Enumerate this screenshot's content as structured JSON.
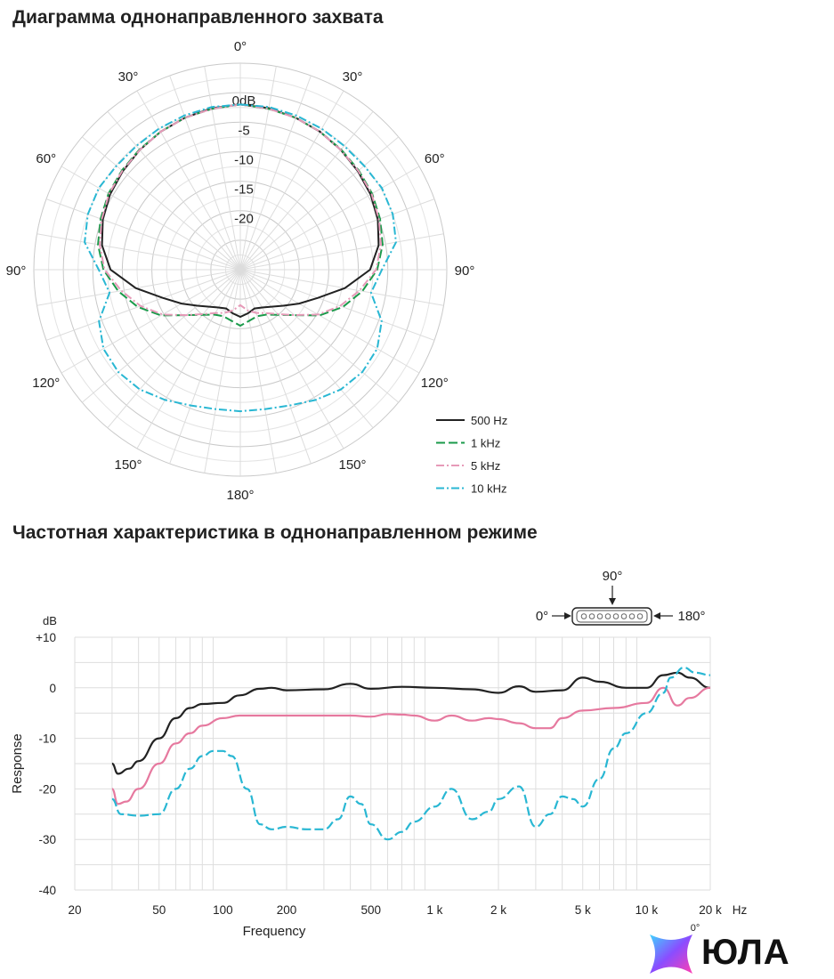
{
  "chart_data": [
    {
      "type": "polar",
      "title": "Диаграмма однонаправленного захвата",
      "angle_labels": [
        {
          "deg": 0,
          "text": "0°"
        },
        {
          "deg": 30,
          "text": "30°"
        },
        {
          "deg": -30,
          "text": "30°"
        },
        {
          "deg": 60,
          "text": "60°"
        },
        {
          "deg": -60,
          "text": "60°"
        },
        {
          "deg": 90,
          "text": "90°"
        },
        {
          "deg": -90,
          "text": "90°"
        },
        {
          "deg": 120,
          "text": "120°"
        },
        {
          "deg": -120,
          "text": "120°"
        },
        {
          "deg": 150,
          "text": "150°"
        },
        {
          "deg": -150,
          "text": "150°"
        },
        {
          "deg": 180,
          "text": "180°"
        }
      ],
      "rings": [
        {
          "db": 0,
          "label": "0dB"
        },
        {
          "db": -5,
          "label": "-5"
        },
        {
          "db": -10,
          "label": "-10"
        },
        {
          "db": -15,
          "label": "-15"
        },
        {
          "db": -20,
          "label": "-20"
        }
      ],
      "r_range_db": [
        -30,
        5
      ],
      "grid": true,
      "legend_position": "bottom-right",
      "series": [
        {
          "name": "500 Hz",
          "color": "#222222",
          "dash": "solid",
          "angles": [
            0,
            10,
            20,
            30,
            40,
            50,
            60,
            70,
            80,
            90,
            100,
            110,
            120,
            130,
            140,
            150,
            160,
            170,
            180
          ],
          "values_db": [
            -2,
            -2.2,
            -2.6,
            -3,
            -3.5,
            -4,
            -4.5,
            -5.2,
            -6.2,
            -8,
            -12,
            -16,
            -18.5,
            -20.5,
            -21.8,
            -22.6,
            -23,
            -22.5,
            -22
          ]
        },
        {
          "name": "1 kHz",
          "color": "#1a9a4a",
          "dash": "dash",
          "angles": [
            0,
            10,
            20,
            30,
            40,
            50,
            60,
            70,
            80,
            90,
            100,
            110,
            120,
            130,
            140,
            150,
            160,
            170,
            180
          ],
          "values_db": [
            -2,
            -2.3,
            -2.6,
            -3,
            -3.4,
            -3.8,
            -4.2,
            -4.8,
            -5.5,
            -6.8,
            -9,
            -11.5,
            -14.5,
            -18,
            -20,
            -21.2,
            -21.6,
            -21.2,
            -20.5
          ]
        },
        {
          "name": "5 kHz",
          "color": "#e69ab8",
          "dash": "dashdot",
          "angles": [
            0,
            10,
            20,
            30,
            40,
            50,
            60,
            70,
            80,
            90,
            100,
            110,
            120,
            130,
            140,
            150,
            160,
            170,
            180
          ],
          "values_db": [
            -2,
            -2.3,
            -2.6,
            -3,
            -3.5,
            -3.9,
            -4.3,
            -5,
            -5.8,
            -7,
            -9.5,
            -12,
            -14.8,
            -18,
            -20.2,
            -21.5,
            -22.2,
            -23,
            -24
          ]
        },
        {
          "name": "10 kHz",
          "color": "#29b7d3",
          "dash": "dashdot",
          "angles": [
            0,
            10,
            20,
            30,
            40,
            50,
            60,
            70,
            80,
            90,
            100,
            110,
            120,
            130,
            140,
            150,
            160,
            170,
            180
          ],
          "values_db": [
            -2,
            -2,
            -2.2,
            -2.4,
            -2.6,
            -2.6,
            -2.3,
            -2.5,
            -3.2,
            -6,
            -7.5,
            -4.5,
            -3.2,
            -3,
            -3.5,
            -4.5,
            -5.5,
            -6,
            -6
          ]
        }
      ]
    },
    {
      "type": "line",
      "title": "Частотная характеристика в однонаправленном режиме",
      "xlabel": "Frequency",
      "ylabel": "Response",
      "x_scale": "log",
      "xlim": [
        20,
        20000
      ],
      "ylim": [
        -40,
        10
      ],
      "x_ticks": [
        {
          "v": 20,
          "label": "20"
        },
        {
          "v": 50,
          "label": "50"
        },
        {
          "v": 100,
          "label": "100"
        },
        {
          "v": 200,
          "label": "200"
        },
        {
          "v": 500,
          "label": "500"
        },
        {
          "v": 1000,
          "label": "1 k"
        },
        {
          "v": 2000,
          "label": "2 k"
        },
        {
          "v": 5000,
          "label": "5 k"
        },
        {
          "v": 10000,
          "label": "10 k"
        },
        {
          "v": 20000,
          "label": "20 k"
        }
      ],
      "x_unit": "Hz",
      "y_ticks": [
        {
          "v": 10,
          "label": "+10"
        },
        {
          "v": 0,
          "label": "0"
        },
        {
          "v": -10,
          "label": "-10"
        },
        {
          "v": -20,
          "label": "-20"
        },
        {
          "v": -30,
          "label": "-30"
        },
        {
          "v": -40,
          "label": "-40"
        }
      ],
      "y_unit": "dB",
      "grid": true,
      "diagram": {
        "top": "90°",
        "left": "0°",
        "right": "180°"
      },
      "series": [
        {
          "name": "0°",
          "color": "#222222",
          "dash": "solid",
          "x": [
            30,
            32,
            36,
            40,
            50,
            60,
            70,
            80,
            100,
            120,
            150,
            170,
            200,
            300,
            400,
            500,
            700,
            1000,
            1500,
            2000,
            2500,
            3000,
            4000,
            5000,
            6000,
            8000,
            10000,
            12000,
            14000,
            16000,
            20000
          ],
          "y": [
            -15,
            -17,
            -16,
            -14.5,
            -10,
            -6,
            -4,
            -3.2,
            -3,
            -1.5,
            -0.2,
            0,
            -0.5,
            -0.3,
            0.8,
            -0.2,
            0.2,
            0,
            -0.3,
            -1,
            0.3,
            -0.8,
            -0.5,
            2,
            1.2,
            0,
            0,
            2.5,
            3,
            2,
            0
          ]
        },
        {
          "name": "90°",
          "color": "#e6799f",
          "dash": "solid",
          "x": [
            30,
            32,
            35,
            40,
            50,
            60,
            70,
            80,
            100,
            120,
            150,
            200,
            300,
            400,
            500,
            600,
            700,
            800,
            1000,
            1200,
            1500,
            1800,
            2000,
            2500,
            3000,
            3500,
            4000,
            5000,
            7000,
            10000,
            12000,
            14000,
            16000,
            20000
          ],
          "y": [
            -20,
            -23,
            -22.5,
            -20,
            -15,
            -11,
            -9,
            -7.5,
            -6,
            -5.5,
            -5.5,
            -5.5,
            -5.5,
            -5.5,
            -5.7,
            -5.2,
            -5.3,
            -5.5,
            -6.5,
            -5.5,
            -6.5,
            -6,
            -6.2,
            -7,
            -8,
            -8,
            -6,
            -4.5,
            -4,
            -3,
            0,
            -3.5,
            -2,
            0
          ]
        },
        {
          "name": "180°",
          "color": "#29b7d3",
          "dash": "dash",
          "x": [
            30,
            33,
            40,
            50,
            60,
            70,
            80,
            90,
            100,
            110,
            130,
            150,
            170,
            200,
            250,
            300,
            350,
            400,
            450,
            500,
            600,
            700,
            800,
            1000,
            1200,
            1500,
            1800,
            2000,
            2500,
            3000,
            3500,
            4000,
            4500,
            5000,
            6000,
            7000,
            8000,
            10000,
            12000,
            13000,
            15000,
            17000,
            20000
          ],
          "y": [
            -22,
            -25,
            -25.3,
            -25,
            -20,
            -16,
            -13.5,
            -12.5,
            -12.5,
            -13.5,
            -20,
            -27,
            -28,
            -27.5,
            -28,
            -28,
            -26,
            -21.5,
            -23,
            -27,
            -30,
            -28.5,
            -26.5,
            -23.5,
            -20,
            -26,
            -24.5,
            -22,
            -19.5,
            -27.5,
            -25,
            -21.5,
            -22,
            -23.5,
            -18,
            -12,
            -9,
            -5,
            -1,
            2,
            4,
            3,
            2.5
          ]
        }
      ]
    }
  ],
  "logo": {
    "text": "ЮЛА",
    "fragment": "0°"
  }
}
